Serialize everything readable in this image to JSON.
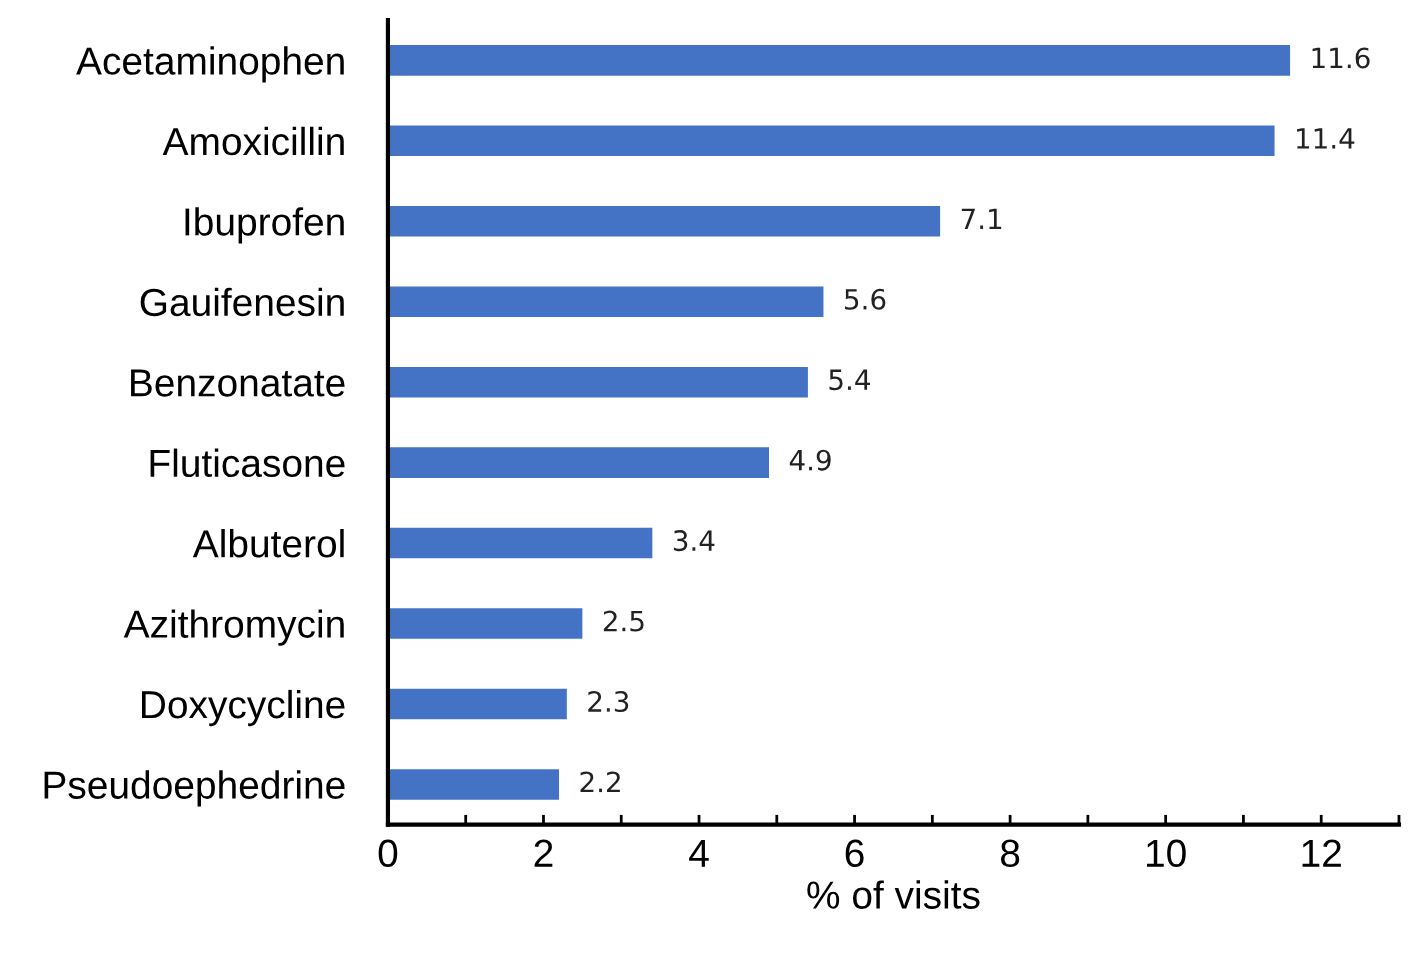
{
  "chart_data": {
    "type": "bar",
    "orientation": "horizontal",
    "xlabel": "% of visits",
    "categories": [
      "Acetaminophen",
      "Amoxicillin",
      "Ibuprofen",
      "Gauifenesin",
      "Benzonatate",
      "Fluticasone",
      "Albuterol",
      "Azithromycin",
      "Doxycycline",
      "Pseudoephedrine"
    ],
    "values": [
      11.6,
      11.4,
      7.1,
      5.6,
      5.4,
      4.9,
      3.4,
      2.5,
      2.3,
      2.2
    ],
    "color": "#4472c4",
    "data_labels": true,
    "grid": false,
    "legend": false,
    "xlim": [
      0,
      13
    ],
    "xticks": [
      0,
      {
        "value": 1,
        "label": null
      },
      2,
      {
        "value": 3,
        "label": null
      },
      4,
      {
        "value": 5,
        "label": null
      },
      6,
      {
        "value": 7,
        "label": null
      },
      8,
      {
        "value": 9,
        "label": null
      },
      10,
      {
        "value": 11,
        "label": null
      },
      12,
      {
        "value": 13,
        "label": null
      }
    ]
  }
}
